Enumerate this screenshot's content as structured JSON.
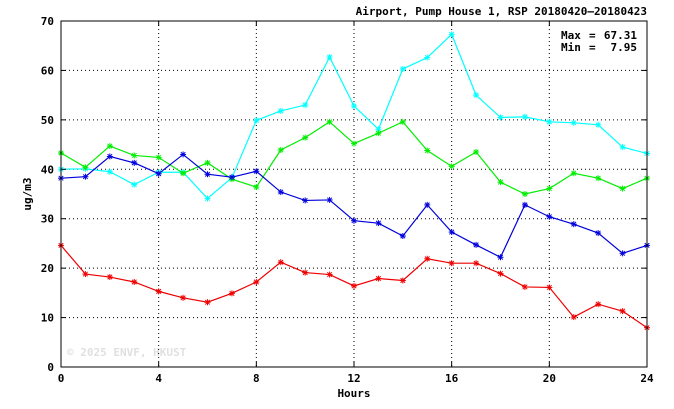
{
  "chart_data": {
    "type": "line",
    "title": "Airport, Pump House 1, RSP 20180420–20180423",
    "xlabel": "Hours",
    "ylabel": "ug/m3",
    "xlim": [
      0,
      24
    ],
    "ylim": [
      0,
      70
    ],
    "x_ticks": [
      0,
      4,
      8,
      12,
      16,
      20,
      24
    ],
    "y_ticks": [
      0,
      10,
      20,
      30,
      40,
      50,
      60,
      70
    ],
    "grid": true,
    "grid_style": "dotted",
    "stats": {
      "max_label": "Max",
      "max_value": "67.31",
      "min_label": "Min",
      "min_value": "7.95"
    },
    "watermark": "© 2025  ENVF, HKUST",
    "x": [
      0,
      1,
      2,
      3,
      4,
      5,
      6,
      7,
      8,
      9,
      10,
      11,
      12,
      13,
      14,
      15,
      16,
      17,
      18,
      19,
      20,
      21,
      22,
      23,
      24
    ],
    "series": [
      {
        "color": "#00ffff",
        "values": [
          40.0,
          40.1,
          39.5,
          36.9,
          39.4,
          39.4,
          34.1,
          38.3,
          49.9,
          51.8,
          53.0,
          62.7,
          52.8,
          48.1,
          60.3,
          62.6,
          67.3,
          55.0,
          50.5,
          50.6,
          49.6,
          49.4,
          49.0,
          44.5,
          43.2
        ]
      },
      {
        "color": "#00ee00",
        "values": [
          43.3,
          40.4,
          44.7,
          42.8,
          42.4,
          39.2,
          41.3,
          38.0,
          36.4,
          43.9,
          46.4,
          49.6,
          45.2,
          47.3,
          49.6,
          43.8,
          40.6,
          43.5,
          37.4,
          35.0,
          36.1,
          39.2,
          38.2,
          36.1,
          38.2
        ]
      },
      {
        "color": "#0000dd",
        "values": [
          38.2,
          38.5,
          42.6,
          41.3,
          39.1,
          43.0,
          39.0,
          38.4,
          39.6,
          35.4,
          33.7,
          33.8,
          29.6,
          29.1,
          26.5,
          32.8,
          27.3,
          24.7,
          22.2,
          32.8,
          30.4,
          28.9,
          27.1,
          23.0,
          24.6
        ]
      },
      {
        "color": "#ee0000",
        "values": [
          24.6,
          18.8,
          18.2,
          17.2,
          15.3,
          14.0,
          13.1,
          14.9,
          17.2,
          21.2,
          19.1,
          18.7,
          16.4,
          17.9,
          17.5,
          21.9,
          21.0,
          21.0,
          18.9,
          16.2,
          16.1,
          10.1,
          12.7,
          11.3,
          7.95
        ]
      }
    ]
  }
}
